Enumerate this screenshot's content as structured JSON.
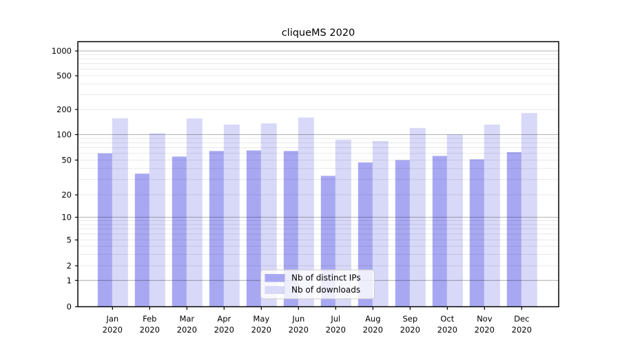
{
  "title": "cliqueMS 2020",
  "legend": {
    "items": [
      {
        "label": "Nb of distinct IPs",
        "color": "#a8a8f2"
      },
      {
        "label": "Nb of downloads",
        "color": "#d8d8f8"
      }
    ]
  },
  "chart_data": {
    "type": "bar",
    "title": "cliqueMS 2020",
    "categories": [
      "Jan 2020",
      "Feb 2020",
      "Mar 2020",
      "Apr 2020",
      "May 2020",
      "Jun 2020",
      "Jul 2020",
      "Aug 2020",
      "Sep 2020",
      "Oct 2020",
      "Nov 2020",
      "Dec 2020"
    ],
    "series": [
      {
        "name": "Nb of distinct IPs",
        "color": "#a8a8f2",
        "values": [
          60,
          35,
          55,
          64,
          65,
          64,
          33,
          47,
          50,
          56,
          51,
          62
        ]
      },
      {
        "name": "Nb of downloads",
        "color": "#d8d8f8",
        "values": [
          157,
          104,
          156,
          132,
          136,
          160,
          87,
          84,
          120,
          100,
          132,
          181
        ]
      }
    ],
    "xlabel": "",
    "ylabel": "",
    "yscale": "symlog",
    "yticks": [
      0,
      1,
      2,
      5,
      10,
      20,
      50,
      100,
      200,
      500,
      1000
    ],
    "ylim": [
      0,
      1300
    ],
    "grid": true,
    "grid_minor": true,
    "legend_position": "lower center"
  },
  "colors": {
    "major_grid": "rgba(0,0,0,0.30)",
    "minor_grid": "rgba(0,0,0,0.09)",
    "spine": "#000000",
    "legend_bg": "rgba(255,255,255,0.8)",
    "legend_border": "#cccccc"
  }
}
